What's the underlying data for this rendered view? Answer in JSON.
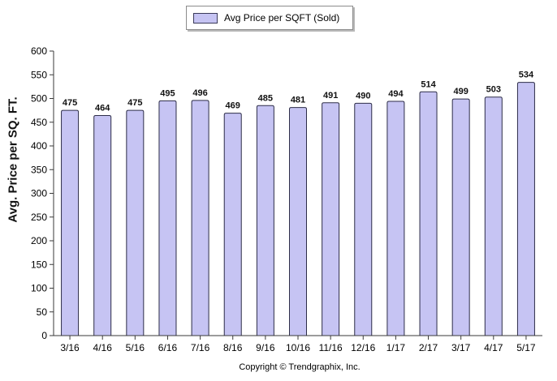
{
  "legend": {
    "label": "Avg Price per SQFT (Sold)"
  },
  "footer": {
    "copyright": "Copyright © Trendgraphix, Inc."
  },
  "colors": {
    "bar_fill": "#c6c4f3",
    "bar_stroke": "#2d2d48",
    "axis": "#3a3a3a"
  },
  "chart_data": {
    "type": "bar",
    "title": "",
    "xlabel": "",
    "ylabel": "Avg. Price per SQ. FT.",
    "ylim": [
      0,
      600
    ],
    "yticks": [
      0,
      50,
      100,
      150,
      200,
      250,
      300,
      350,
      400,
      450,
      500,
      550,
      600
    ],
    "grid": false,
    "legend_position": "top-center",
    "categories": [
      "3/16",
      "4/16",
      "5/16",
      "6/16",
      "7/16",
      "8/16",
      "9/16",
      "10/16",
      "11/16",
      "12/16",
      "1/17",
      "2/17",
      "3/17",
      "4/17",
      "5/17"
    ],
    "series": [
      {
        "name": "Avg Price per SQFT (Sold)",
        "values": [
          475,
          464,
          475,
          495,
          496,
          469,
          485,
          481,
          491,
          490,
          494,
          514,
          499,
          503,
          534
        ]
      }
    ]
  }
}
